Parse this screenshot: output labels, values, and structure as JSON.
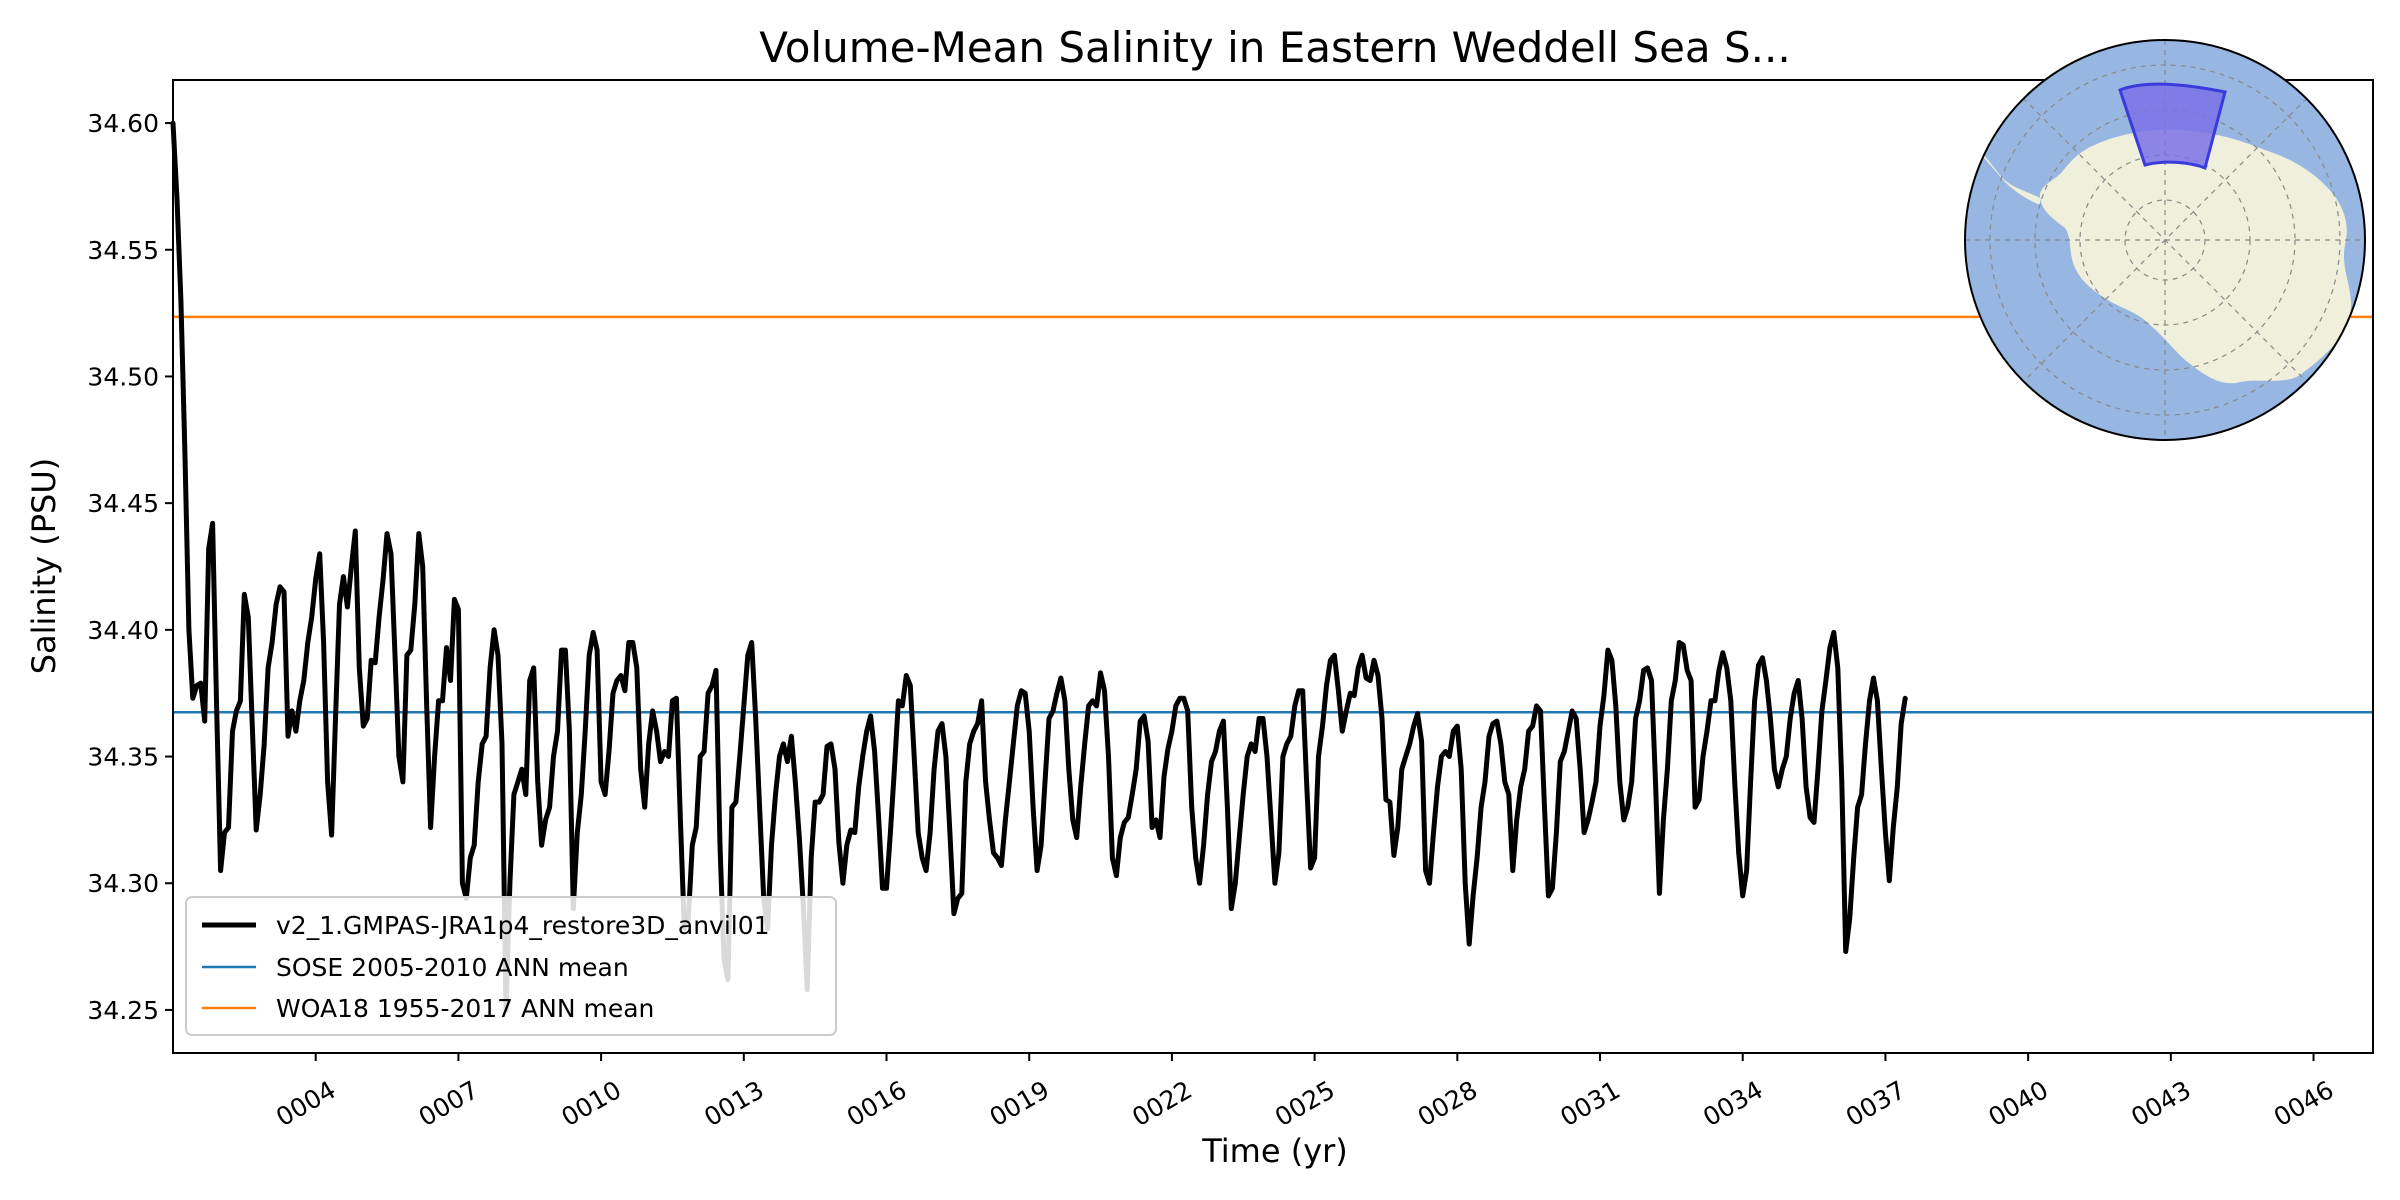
{
  "chart_data": {
    "type": "line",
    "title": "Volume-Mean Salinity in Eastern Weddell Sea S...",
    "xlabel": "Time (yr)",
    "ylabel": "Salinity (PSU)",
    "xlim": [
      1.0,
      47.25
    ],
    "ylim": [
      34.233,
      34.617
    ],
    "x_ticks": [
      4,
      7,
      10,
      13,
      16,
      19,
      22,
      25,
      28,
      31,
      34,
      37,
      40,
      43,
      46
    ],
    "x_tick_labels": [
      "0004",
      "0007",
      "0010",
      "0013",
      "0016",
      "0019",
      "0022",
      "0025",
      "0028",
      "0031",
      "0034",
      "0037",
      "0040",
      "0043",
      "0046"
    ],
    "y_ticks": [
      34.25,
      34.3,
      34.35,
      34.4,
      34.45,
      34.5,
      34.55,
      34.6
    ],
    "y_tick_labels": [
      "34.25",
      "34.30",
      "34.35",
      "34.40",
      "34.45",
      "34.50",
      "34.55",
      "34.60"
    ],
    "grid": false,
    "legend_position": "lower-left",
    "series": [
      {
        "name": "v2_1.GMPAS-JRA1p4_restore3D_anvil01",
        "color": "#000000",
        "x_start": 1.0,
        "x_step": 0.08333,
        "values": [
          34.6,
          34.57,
          34.53,
          34.47,
          34.4,
          34.373,
          34.378,
          34.379,
          34.364,
          34.432,
          34.442,
          34.37,
          34.305,
          34.32,
          34.322,
          34.36,
          34.368,
          34.372,
          34.414,
          34.405,
          34.362,
          34.321,
          34.335,
          34.355,
          34.385,
          34.395,
          34.41,
          34.417,
          34.415,
          34.358,
          34.368,
          34.36,
          34.372,
          34.38,
          34.395,
          34.405,
          34.42,
          34.43,
          34.395,
          34.34,
          34.319,
          34.365,
          34.41,
          34.421,
          34.409,
          34.425,
          34.439,
          34.385,
          34.362,
          34.365,
          34.388,
          34.387,
          34.405,
          34.42,
          34.438,
          34.43,
          34.39,
          34.35,
          34.34,
          34.39,
          34.392,
          34.41,
          34.438,
          34.425,
          34.37,
          34.322,
          34.35,
          34.372,
          34.372,
          34.393,
          34.38,
          34.412,
          34.408,
          34.3,
          34.294,
          34.31,
          34.315,
          34.34,
          34.355,
          34.358,
          34.385,
          34.4,
          34.39,
          34.355,
          34.25,
          34.3,
          34.335,
          34.34,
          34.345,
          34.335,
          34.38,
          34.385,
          34.34,
          34.315,
          34.325,
          34.33,
          34.35,
          34.36,
          34.392,
          34.392,
          34.36,
          34.29,
          34.32,
          34.335,
          34.36,
          34.39,
          34.399,
          34.392,
          34.34,
          34.335,
          34.352,
          34.375,
          34.38,
          34.382,
          34.376,
          34.395,
          34.395,
          34.385,
          34.345,
          34.33,
          34.355,
          34.368,
          34.36,
          34.348,
          34.352,
          34.35,
          34.372,
          34.373,
          34.325,
          34.282,
          34.286,
          34.315,
          34.322,
          34.35,
          34.352,
          34.375,
          34.378,
          34.384,
          34.315,
          34.27,
          34.262,
          34.33,
          34.332,
          34.35,
          34.37,
          34.39,
          34.395,
          34.365,
          34.33,
          34.295,
          34.282,
          34.315,
          34.335,
          34.35,
          34.355,
          34.348,
          34.358,
          34.34,
          34.318,
          34.292,
          34.258,
          34.31,
          34.332,
          34.332,
          34.335,
          34.354,
          34.355,
          34.345,
          34.316,
          34.3,
          34.315,
          34.321,
          34.32,
          34.338,
          34.35,
          34.36,
          34.366,
          34.352,
          34.326,
          34.298,
          34.298,
          34.32,
          34.345,
          34.372,
          34.37,
          34.382,
          34.378,
          34.35,
          34.32,
          34.31,
          34.305,
          34.32,
          34.345,
          34.36,
          34.363,
          34.35,
          34.32,
          34.288,
          34.294,
          34.296,
          34.34,
          34.355,
          34.36,
          34.363,
          34.372,
          34.34,
          34.325,
          34.312,
          34.31,
          34.307,
          34.325,
          34.34,
          34.355,
          34.37,
          34.376,
          34.375,
          34.36,
          34.33,
          34.305,
          34.315,
          34.34,
          34.365,
          34.368,
          34.375,
          34.381,
          34.372,
          34.345,
          34.325,
          34.318,
          34.338,
          34.355,
          34.37,
          34.372,
          34.37,
          34.383,
          34.376,
          34.35,
          34.31,
          34.303,
          34.318,
          34.324,
          34.326,
          34.335,
          34.345,
          34.364,
          34.366,
          34.356,
          34.322,
          34.325,
          34.318,
          34.342,
          34.353,
          34.36,
          34.37,
          34.373,
          34.373,
          34.368,
          34.33,
          34.31,
          34.3,
          34.315,
          34.335,
          34.348,
          34.352,
          34.36,
          34.364,
          34.33,
          34.29,
          34.3,
          34.318,
          34.335,
          34.35,
          34.355,
          34.352,
          34.365,
          34.365,
          34.35,
          34.325,
          34.3,
          34.312,
          34.35,
          34.355,
          34.358,
          34.37,
          34.376,
          34.376,
          34.34,
          34.306,
          34.31,
          34.35,
          34.362,
          34.378,
          34.388,
          34.39,
          34.376,
          34.36,
          34.368,
          34.375,
          34.374,
          34.385,
          34.39,
          34.381,
          34.38,
          34.388,
          34.382,
          34.365,
          34.333,
          34.332,
          34.311,
          34.322,
          34.345,
          34.35,
          34.355,
          34.362,
          34.367,
          34.356,
          34.305,
          34.3,
          34.32,
          34.338,
          34.35,
          34.352,
          34.35,
          34.36,
          34.362,
          34.345,
          34.3,
          34.276,
          34.295,
          34.31,
          34.33,
          34.34,
          34.358,
          34.363,
          34.364,
          34.355,
          34.34,
          34.335,
          34.305,
          34.325,
          34.338,
          34.345,
          34.36,
          34.362,
          34.37,
          34.368,
          34.33,
          34.295,
          34.298,
          34.32,
          34.348,
          34.352,
          34.36,
          34.368,
          34.365,
          34.345,
          34.32,
          34.325,
          34.332,
          34.34,
          34.362,
          34.374,
          34.392,
          34.388,
          34.37,
          34.34,
          34.325,
          34.33,
          34.34,
          34.365,
          34.372,
          34.384,
          34.385,
          34.38,
          34.34,
          34.296,
          34.325,
          34.345,
          34.372,
          34.38,
          34.395,
          34.394,
          34.384,
          34.38,
          34.33,
          34.333,
          34.35,
          34.36,
          34.372,
          34.372,
          34.384,
          34.391,
          34.385,
          34.372,
          34.34,
          34.312,
          34.295,
          34.305,
          34.34,
          34.372,
          34.386,
          34.389,
          34.38,
          34.365,
          34.345,
          34.338,
          34.345,
          34.35,
          34.365,
          34.375,
          34.38,
          34.365,
          34.338,
          34.326,
          34.324,
          34.345,
          34.368,
          34.38,
          34.393,
          34.399,
          34.385,
          34.34,
          34.273,
          34.286,
          34.31,
          34.33,
          34.335,
          34.355,
          34.372,
          34.381,
          34.372,
          34.345,
          34.32,
          34.301,
          34.322,
          34.338,
          34.363,
          34.373
        ]
      },
      {
        "name": "SOSE 2005-2010 ANN mean",
        "color": "#1f77b4",
        "value": 34.3675
      },
      {
        "name": "WOA18 1955-2017 ANN mean",
        "color": "#ff7f0e",
        "value": 34.5235
      }
    ]
  },
  "inset_map": {
    "ocean_color": "#97b6e1",
    "land_color": "#efefdb",
    "region_color": "#7a72e8"
  }
}
